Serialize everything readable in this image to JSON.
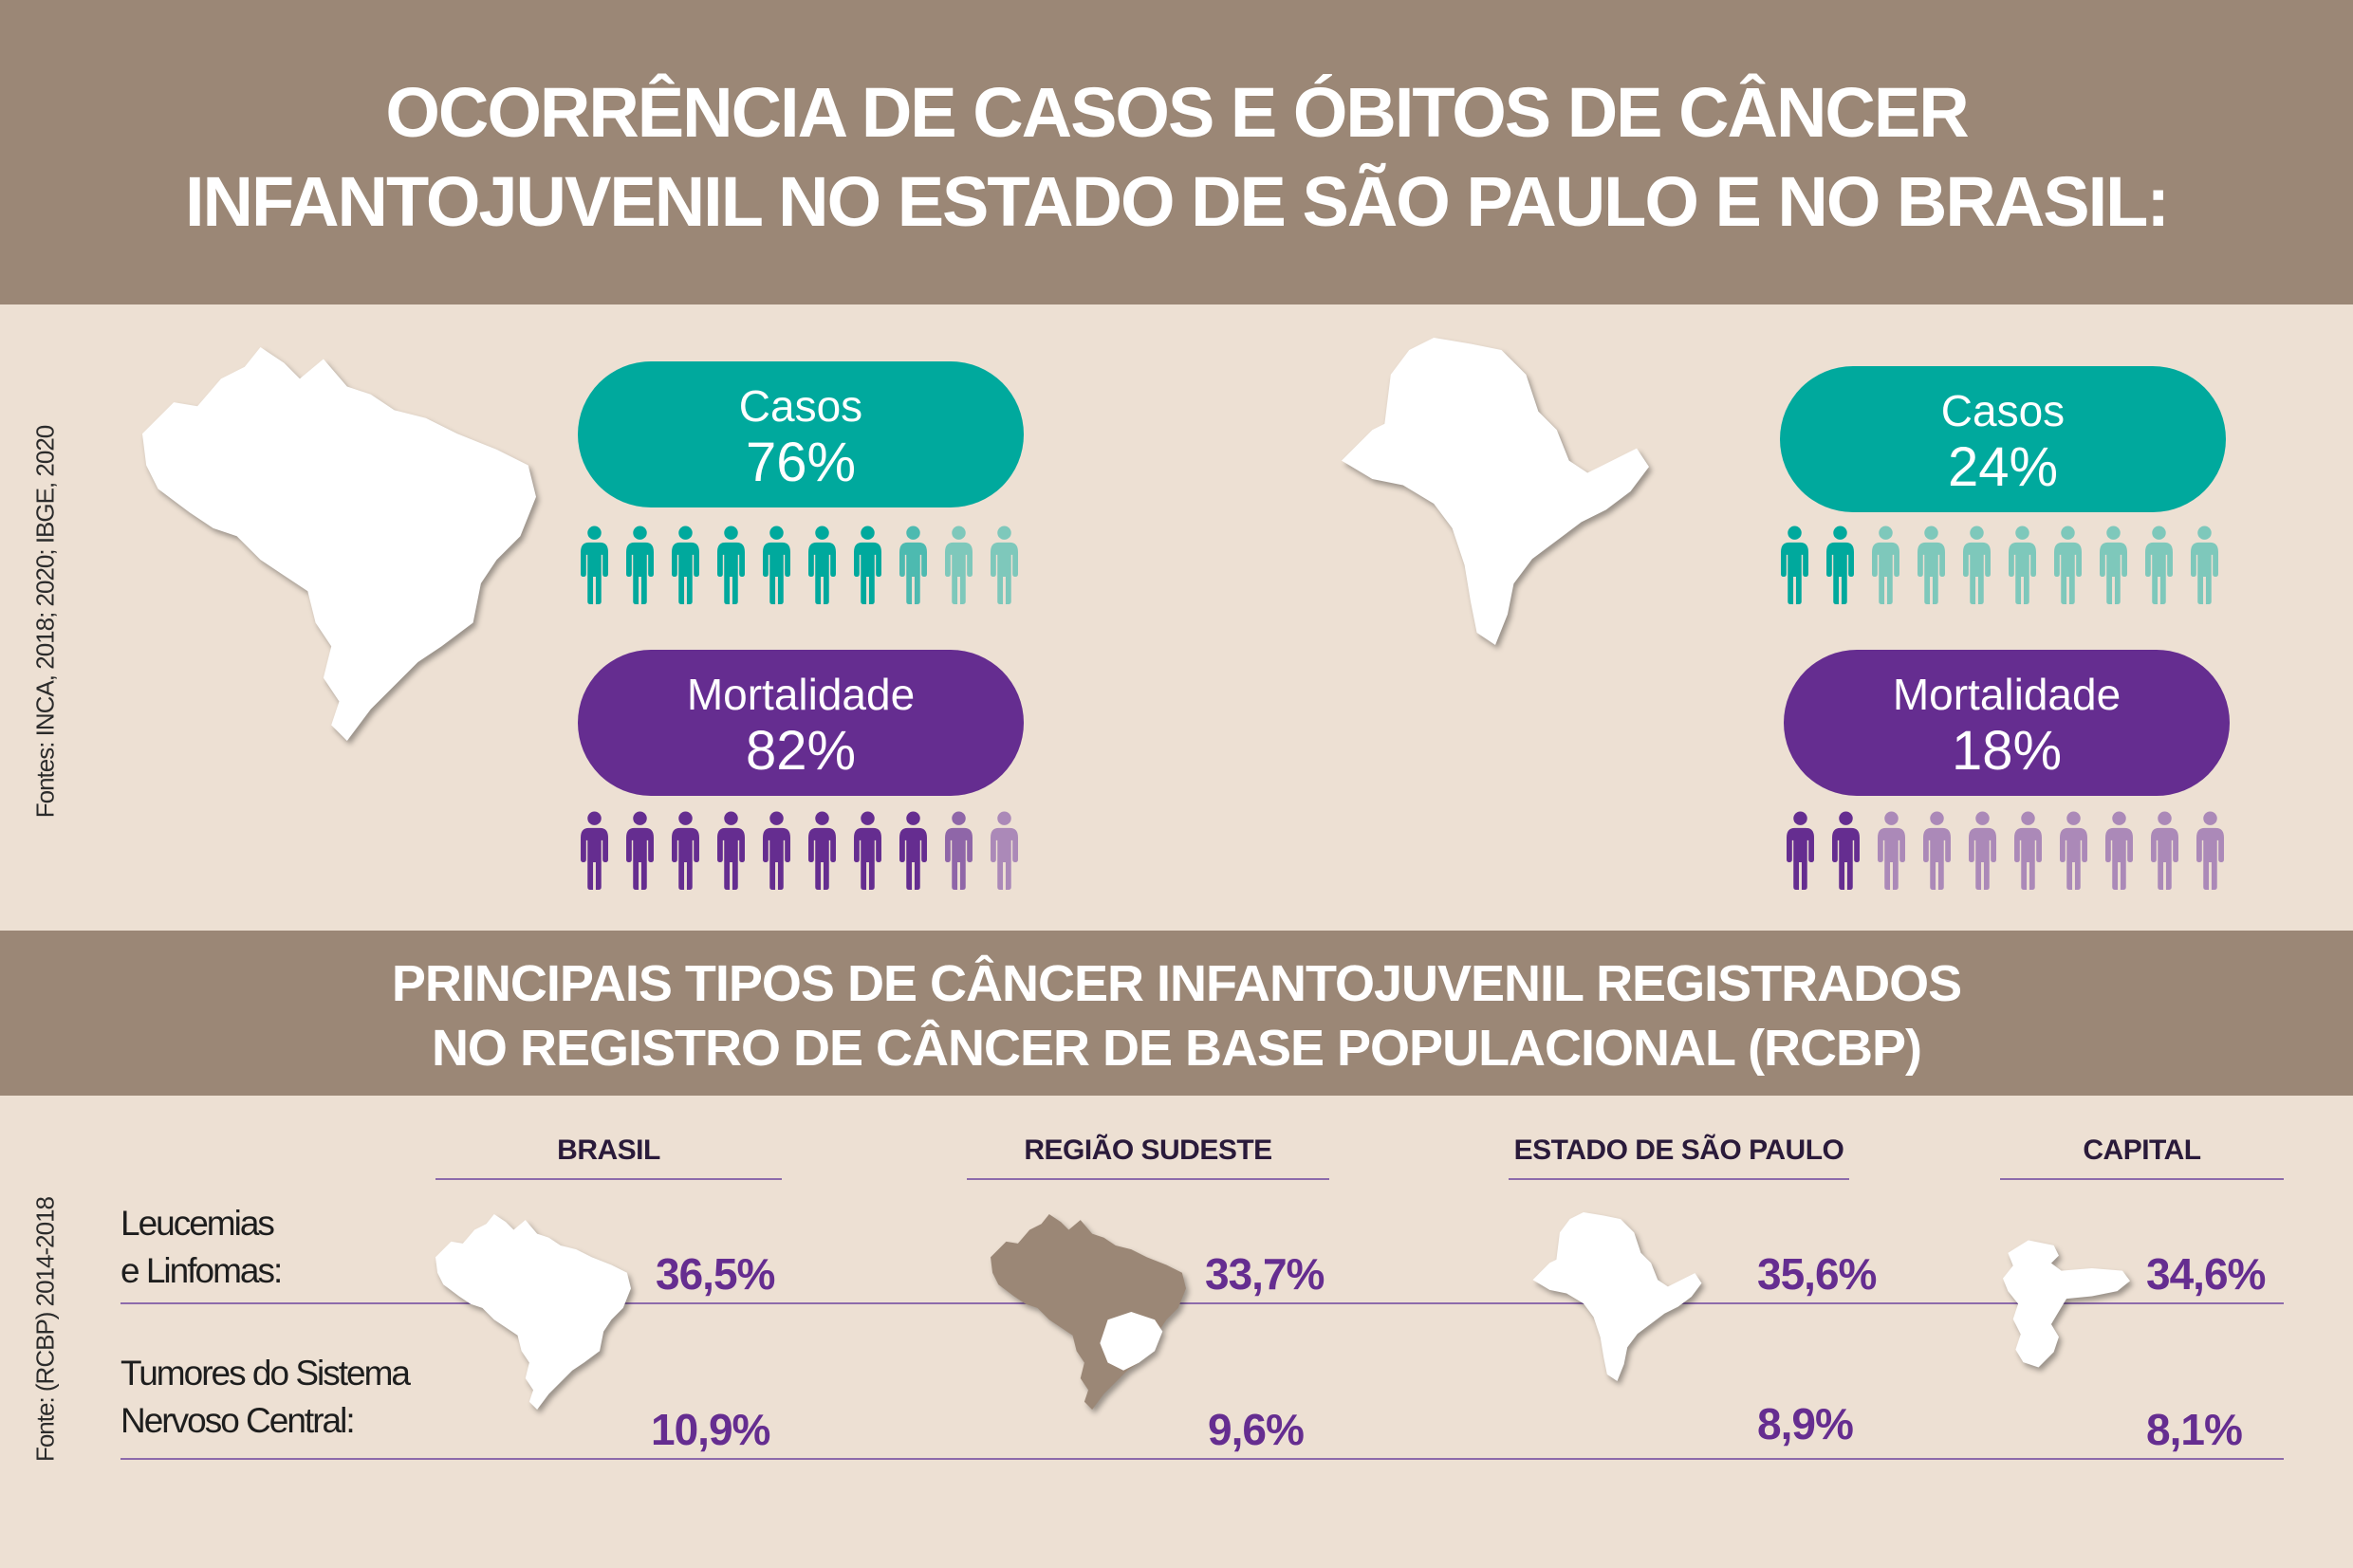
{
  "header": {
    "line1": "OCORRÊNCIA DE CASOS E ÓBITOS DE CÂNCER",
    "line2": "INFANTOJUVENIL NO ESTADO DE SÃO PAULO E NO BRASIL:"
  },
  "source_top": "Fontes: INCA, 2018; 2020; IBGE, 2020",
  "colors": {
    "header_bg": "#9b8776",
    "page_bg": "#ede0d3",
    "teal": "#00a99d",
    "purple": "#652d90"
  },
  "brasil": {
    "casos": {
      "label": "Casos",
      "value": "76%",
      "people": [
        "dark",
        "dark",
        "dark",
        "dark",
        "dark",
        "dark",
        "dark",
        "mid",
        "light",
        "light"
      ]
    },
    "mortalidade": {
      "label": "Mortalidade",
      "value": "82%",
      "people": [
        "dark",
        "dark",
        "dark",
        "dark",
        "dark",
        "dark",
        "dark",
        "dark",
        "mid",
        "light"
      ]
    }
  },
  "sao_paulo": {
    "casos": {
      "label": "Casos",
      "value": "24%",
      "people": [
        "dark",
        "dark",
        "light",
        "light",
        "light",
        "light",
        "light",
        "light",
        "light",
        "light"
      ]
    },
    "mortalidade": {
      "label": "Mortalidade",
      "value": "18%",
      "people": [
        "dark",
        "dark",
        "light",
        "light",
        "light",
        "light",
        "light",
        "light",
        "light",
        "light"
      ]
    }
  },
  "section2": {
    "line1": "PRINCIPAIS TIPOS DE CÂNCER INFANTOJUVENIL REGISTRADOS",
    "line2": "NO REGISTRO DE CÂNCER DE BASE POPULACIONAL (RCBP)"
  },
  "source_bottom": "Fonte: (RCBP) 2014-2018",
  "table": {
    "columns": [
      "BRASIL",
      "REGIÃO SUDESTE",
      "ESTADO DE SÃO PAULO",
      "CAPITAL"
    ],
    "rows": [
      {
        "label1": "Leucemias",
        "label2": "e Linfomas:",
        "values": [
          "36,5%",
          "33,7%",
          "35,6%",
          "34,6%"
        ]
      },
      {
        "label1": "Tumores do Sistema",
        "label2": "Nervoso Central:",
        "values": [
          "10,9%",
          "9,6%",
          "8,9%",
          "8,1%"
        ]
      }
    ]
  }
}
